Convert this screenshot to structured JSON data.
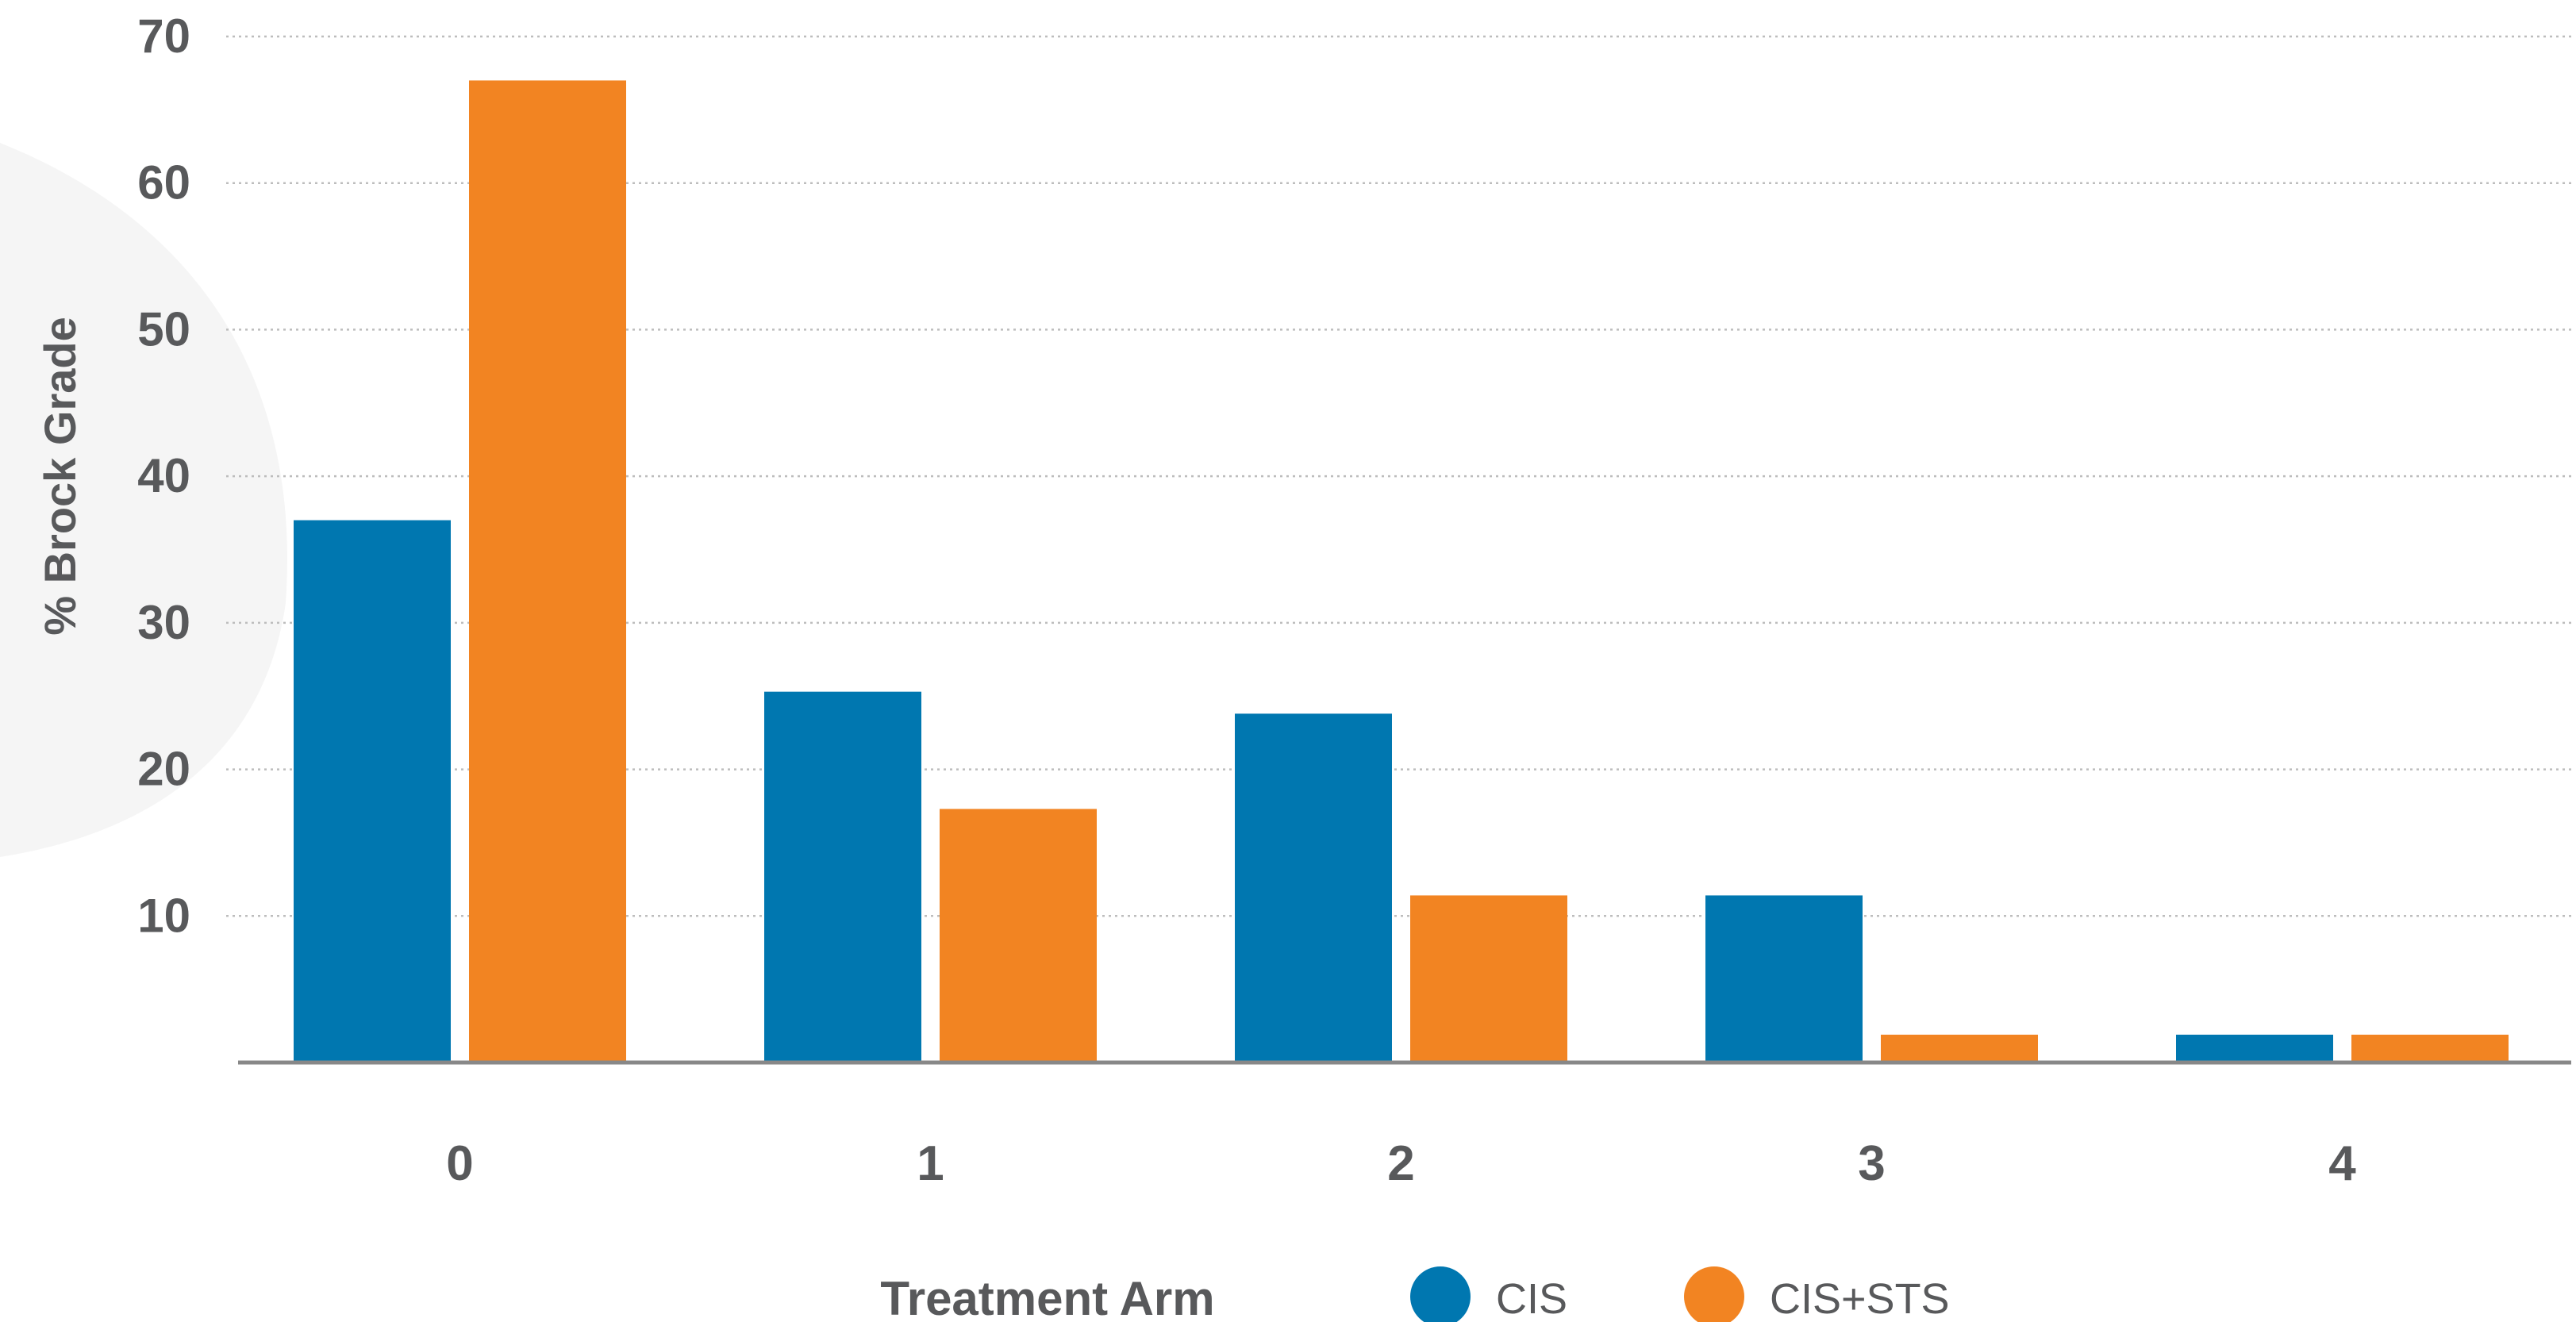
{
  "chart_data": {
    "type": "bar",
    "title": "",
    "xlabel": "",
    "ylabel": "% Brock Grade",
    "categories": [
      "0",
      "1",
      "2",
      "3",
      "4"
    ],
    "series": [
      {
        "name": "CIS",
        "color": "#0077b0",
        "values": [
          37,
          25.3,
          23.8,
          11.4,
          1.9
        ]
      },
      {
        "name": "CIS+STS",
        "color": "#f28422",
        "values": [
          67,
          17.3,
          11.4,
          1.9,
          1.9
        ]
      }
    ],
    "ylim": [
      0,
      70
    ],
    "yticks": [
      10,
      20,
      30,
      40,
      50,
      60,
      70
    ],
    "grid": true,
    "legend": {
      "title": "Treatment Arm",
      "position": "bottom-center"
    }
  }
}
